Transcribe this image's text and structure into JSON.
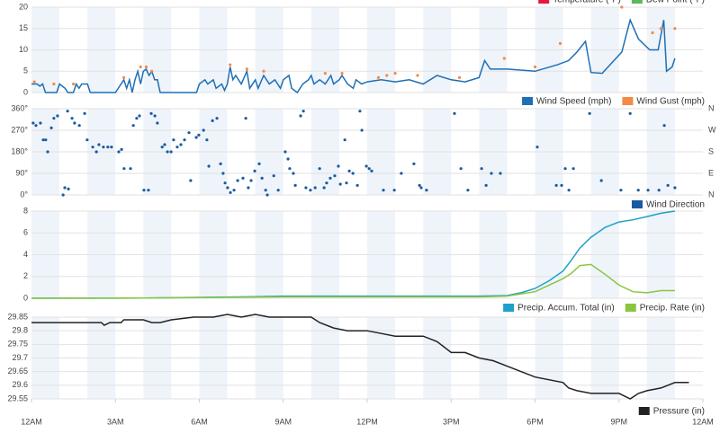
{
  "legend_above": [
    {
      "name": "Temperature (°F)",
      "color": "#e8173f"
    },
    {
      "name": "Dew Point (°F)",
      "color": "#5cb85c"
    }
  ],
  "chart_data": [
    {
      "type": "line",
      "xlim": [
        0,
        24
      ],
      "ylim": [
        0,
        20
      ],
      "yticks": [
        0,
        5,
        10,
        15,
        20
      ],
      "grid": true,
      "series": [
        {
          "name": "Wind Speed (mph)",
          "color": "#1f6fb5",
          "x": [
            0,
            0.2,
            0.3,
            0.4,
            0.5,
            0.9,
            1.0,
            1.2,
            1.3,
            1.5,
            1.6,
            1.7,
            1.8,
            2.0,
            2.1,
            3.0,
            3.2,
            3.3,
            3.4,
            3.5,
            3.6,
            3.7,
            3.8,
            3.9,
            4.0,
            4.1,
            4.2,
            4.3,
            4.4,
            4.5,
            4.6,
            5.9,
            6.0,
            6.2,
            6.3,
            6.5,
            6.6,
            6.8,
            6.9,
            7.0,
            7.1,
            7.2,
            7.3,
            7.5,
            7.7,
            7.8,
            8.0,
            8.1,
            8.3,
            8.5,
            8.7,
            8.9,
            9.0,
            9.2,
            9.3,
            9.5,
            9.7,
            9.9,
            10.0,
            10.1,
            10.3,
            10.5,
            10.7,
            10.8,
            11.0,
            11.1,
            11.3,
            11.5,
            11.6,
            11.8,
            12.0,
            12.5,
            13.0,
            13.5,
            14.0,
            14.5,
            15.0,
            15.5,
            16.0,
            16.2,
            16.4,
            17.0,
            18.0,
            18.8,
            19.2,
            19.5,
            19.8,
            20.0,
            20.4,
            21.1,
            21.4,
            21.7,
            22.1,
            22.4,
            22.6,
            22.7,
            22.9,
            23.0
          ],
          "values": [
            2,
            2,
            1.5,
            2,
            0,
            0,
            2,
            1,
            0,
            0,
            2,
            1,
            2,
            2,
            0,
            0,
            2,
            3,
            1,
            3,
            0,
            3,
            5,
            2,
            5,
            5.5,
            4,
            5,
            3,
            3,
            0,
            0,
            2,
            3,
            2,
            3,
            1,
            2,
            0.5,
            2,
            6,
            3,
            4,
            2,
            5,
            1,
            3,
            1,
            4,
            2,
            3,
            1,
            3,
            4,
            1,
            0,
            2,
            3,
            4,
            2,
            3,
            2,
            4,
            2,
            3,
            4,
            2,
            1,
            3,
            2,
            2.5,
            3,
            2.5,
            3,
            2,
            4,
            3,
            2.5,
            3.5,
            7.5,
            5.5,
            5.5,
            5,
            6.5,
            7.5,
            9.5,
            12,
            4.7,
            4.5,
            9.5,
            17,
            12.5,
            10,
            10,
            17,
            5,
            6,
            8
          ]
        },
        {
          "name": "Wind Gust (mph)",
          "color": "#f58a44",
          "type": "scatter",
          "x": [
            0.1,
            0.8,
            1.5,
            3.3,
            3.9,
            4.1,
            4.3,
            7.1,
            7.7,
            8.3,
            10.5,
            11.1,
            12.4,
            12.7,
            13.0,
            13.8,
            15.3,
            16.9,
            18.0,
            18.9,
            21.1,
            22.2,
            22.5,
            23.0
          ],
          "values": [
            2.5,
            2,
            2,
            3.5,
            6,
            6,
            5,
            6.5,
            5.5,
            5,
            4.5,
            4.5,
            3.5,
            4,
            4.5,
            4,
            3.5,
            8,
            6,
            11.5,
            20,
            14,
            15,
            15
          ]
        }
      ]
    },
    {
      "type": "scatter",
      "xlim": [
        0,
        24
      ],
      "ylim": [
        0,
        360
      ],
      "grid": true,
      "yticks": [
        {
          "value": 0,
          "label": "0°"
        },
        {
          "value": 90,
          "label": "90°"
        },
        {
          "value": 180,
          "label": "180°"
        },
        {
          "value": 270,
          "label": "270°"
        },
        {
          "value": 360,
          "label": "360°"
        }
      ],
      "y2lim": [
        0,
        360
      ],
      "y2ticks": [
        {
          "value": 0,
          "label": "N"
        },
        {
          "value": 90,
          "label": "E"
        },
        {
          "value": 180,
          "label": "S"
        },
        {
          "value": 270,
          "label": "W"
        },
        {
          "value": 360,
          "label": "N"
        }
      ],
      "series": [
        {
          "name": "Wind Direction",
          "color": "#1a5aa0",
          "x": [
            0.06,
            0.16,
            0.32,
            0.42,
            0.51,
            0.58,
            0.71,
            0.8,
            0.93,
            1.13,
            1.19,
            1.29,
            1.32,
            1.45,
            1.54,
            1.71,
            1.9,
            1.99,
            2.19,
            2.32,
            2.41,
            2.57,
            2.73,
            2.86,
            3.12,
            3.22,
            3.31,
            3.54,
            3.64,
            3.76,
            3.86,
            4.02,
            4.18,
            4.28,
            4.41,
            4.5,
            4.67,
            4.76,
            4.86,
            4.99,
            5.08,
            5.21,
            5.34,
            5.47,
            5.63,
            5.69,
            5.89,
            5.98,
            6.15,
            6.27,
            6.34,
            6.47,
            6.63,
            6.76,
            6.85,
            6.92,
            7.01,
            7.11,
            7.24,
            7.37,
            7.56,
            7.66,
            7.75,
            7.85,
            7.98,
            8.14,
            8.24,
            8.37,
            8.43,
            8.66,
            8.82,
            9.07,
            9.17,
            9.23,
            9.36,
            9.43,
            9.62,
            9.72,
            9.81,
            9.97,
            10.14,
            10.3,
            10.46,
            10.55,
            10.68,
            10.84,
            10.97,
            11.04,
            11.2,
            11.26,
            11.36,
            11.49,
            11.65,
            11.74,
            11.81,
            11.97,
            12.07,
            12.16,
            12.58,
            12.97,
            13.22,
            13.67,
            13.87,
            13.93,
            14.12,
            15.12,
            15.35,
            15.6,
            16.09,
            16.25,
            16.44,
            16.76,
            18.08,
            18.76,
            18.95,
            19.08,
            19.21,
            19.37,
            19.95,
            20.37,
            21.07,
            21.4,
            21.69,
            22.04,
            22.43,
            22.62,
            22.75,
            23.0
          ],
          "values": [
            300,
            290,
            300,
            230,
            230,
            180,
            280,
            320,
            330,
            0,
            30,
            350,
            25,
            320,
            300,
            290,
            340,
            230,
            200,
            180,
            210,
            200,
            200,
            200,
            180,
            190,
            110,
            110,
            290,
            320,
            330,
            20,
            20,
            340,
            330,
            300,
            200,
            210,
            180,
            180,
            230,
            200,
            210,
            230,
            260,
            60,
            240,
            250,
            270,
            230,
            120,
            310,
            320,
            130,
            90,
            50,
            30,
            10,
            20,
            60,
            70,
            320,
            30,
            60,
            100,
            130,
            70,
            20,
            0,
            80,
            20,
            180,
            150,
            110,
            90,
            40,
            330,
            350,
            30,
            20,
            30,
            110,
            30,
            50,
            70,
            80,
            120,
            45,
            230,
            50,
            100,
            90,
            40,
            350,
            270,
            120,
            110,
            100,
            20,
            20,
            90,
            130,
            40,
            30,
            20,
            340,
            110,
            20,
            110,
            40,
            90,
            90,
            200,
            40,
            40,
            110,
            20,
            110,
            340,
            60,
            20,
            340,
            20,
            20,
            20,
            290,
            40,
            30
          ]
        }
      ]
    },
    {
      "type": "line",
      "xlim": [
        0,
        24
      ],
      "ylim": [
        0,
        8
      ],
      "yticks": [
        0,
        2,
        4,
        6,
        8
      ],
      "grid": true,
      "series": [
        {
          "name": "Precip. Accum. Total (in)",
          "color": "#1ea0c8",
          "x": [
            0,
            4,
            8,
            9,
            12,
            15,
            16,
            17,
            17.5,
            18,
            18.5,
            19,
            19.3,
            19.6,
            20,
            20.5,
            21,
            21.5,
            22,
            22.5,
            23
          ],
          "values": [
            0,
            0.02,
            0.15,
            0.2,
            0.2,
            0.2,
            0.2,
            0.25,
            0.5,
            0.9,
            1.6,
            2.5,
            3.5,
            4.6,
            5.6,
            6.5,
            7.0,
            7.2,
            7.5,
            7.8,
            8.0
          ]
        },
        {
          "name": "Precip. Rate (in)",
          "color": "#8bc53f",
          "x": [
            0,
            4,
            8,
            9,
            12,
            15,
            16,
            17,
            17.5,
            18,
            18.5,
            19,
            19.3,
            19.6,
            20,
            20.5,
            21,
            21.5,
            22,
            22.5,
            23
          ],
          "values": [
            0,
            0.02,
            0.1,
            0.12,
            0.12,
            0.12,
            0.12,
            0.2,
            0.4,
            0.6,
            1.2,
            1.8,
            2.3,
            3.0,
            3.1,
            2.2,
            1.2,
            0.6,
            0.5,
            0.7,
            0.7
          ]
        }
      ]
    },
    {
      "type": "line",
      "xlim": [
        0,
        24
      ],
      "ylim": [
        29.55,
        29.85
      ],
      "yticks": [
        29.55,
        29.6,
        29.65,
        29.7,
        29.75,
        29.8,
        29.85
      ],
      "grid": true,
      "xticks": [
        {
          "value": 0,
          "label": "12AM"
        },
        {
          "value": 3,
          "label": "3AM"
        },
        {
          "value": 6,
          "label": "6AM"
        },
        {
          "value": 9,
          "label": "9AM"
        },
        {
          "value": 12,
          "label": "12PM"
        },
        {
          "value": 15,
          "label": "3PM"
        },
        {
          "value": 18,
          "label": "6PM"
        },
        {
          "value": 21,
          "label": "9PM"
        },
        {
          "value": 24,
          "label": "12AM"
        }
      ],
      "series": [
        {
          "name": "Pressure (in)",
          "color": "#222222",
          "x": [
            0,
            2.5,
            2.6,
            2.8,
            3.2,
            3.3,
            4.0,
            4.3,
            4.6,
            5.0,
            5.8,
            6.5,
            7.0,
            7.5,
            8.0,
            8.5,
            10.0,
            10.3,
            10.8,
            11.3,
            12.0,
            12.5,
            13.0,
            14.0,
            14.5,
            15.0,
            15.5,
            16.0,
            16.5,
            17.0,
            18.0,
            19.0,
            19.2,
            19.5,
            20.0,
            21.0,
            21.4,
            21.7,
            22.0,
            22.5,
            23.0,
            23.5
          ],
          "values": [
            29.83,
            29.83,
            29.82,
            29.83,
            29.83,
            29.84,
            29.84,
            29.83,
            29.83,
            29.84,
            29.85,
            29.85,
            29.86,
            29.85,
            29.86,
            29.85,
            29.85,
            29.83,
            29.81,
            29.8,
            29.8,
            29.79,
            29.78,
            29.78,
            29.76,
            29.72,
            29.72,
            29.7,
            29.69,
            29.67,
            29.63,
            29.61,
            29.59,
            29.58,
            29.57,
            29.57,
            29.55,
            29.57,
            29.58,
            29.59,
            29.61,
            29.61
          ]
        }
      ]
    }
  ]
}
